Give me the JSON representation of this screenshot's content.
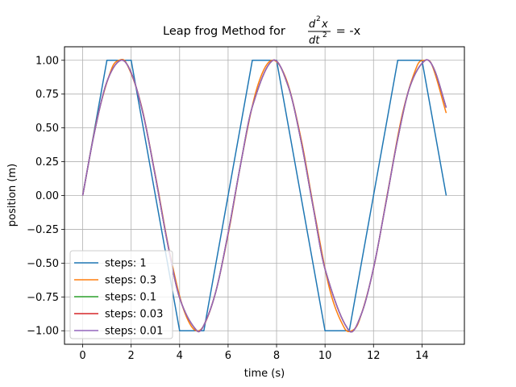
{
  "chart_data": {
    "type": "line",
    "title": {
      "prefix": "Leap frog Method for ",
      "numerator_base": "d",
      "numerator_exp": "2",
      "numerator_var": "x",
      "denominator_base": "dt",
      "denominator_exp": "2",
      "suffix": " = -x"
    },
    "xlabel": "time (s)",
    "ylabel": "position (m)",
    "xlim": [
      -0.75,
      15.75
    ],
    "ylim": [
      -1.1,
      1.1
    ],
    "xticks": [
      0,
      2,
      4,
      6,
      8,
      10,
      12,
      14
    ],
    "yticks": [
      -1.0,
      -0.75,
      -0.5,
      -0.25,
      0.0,
      0.25,
      0.5,
      0.75,
      1.0
    ],
    "xtick_labels": [
      "0",
      "2",
      "4",
      "6",
      "8",
      "10",
      "12",
      "14"
    ],
    "ytick_labels": [
      "−1.00",
      "−0.75",
      "−0.50",
      "−0.25",
      "0.00",
      "0.25",
      "0.50",
      "0.75",
      "1.00"
    ],
    "grid": true,
    "legend_position": "lower-left",
    "colors": [
      "#1f77b4",
      "#ff7f0e",
      "#2ca02c",
      "#d62728",
      "#9467bd"
    ],
    "series": [
      {
        "name": "steps: 1",
        "color": "#1f77b4",
        "x": [
          0,
          1,
          2,
          3,
          4,
          5,
          6,
          7,
          8,
          9,
          10,
          11,
          12,
          13,
          14,
          15
        ],
        "y": [
          0,
          1,
          1,
          0,
          -1,
          -1,
          0,
          1,
          1,
          0,
          -1,
          -1,
          0,
          1,
          1,
          0
        ]
      },
      {
        "name": "steps: 0.3",
        "color": "#ff7f0e",
        "x": [
          0,
          0.6,
          1.2,
          1.5,
          1.8,
          2.4,
          3.0,
          3.6,
          4.2,
          4.8,
          5.4,
          6.0,
          6.6,
          7.2,
          7.8,
          8.4,
          9.0,
          9.6,
          10.2,
          10.8,
          11.1,
          11.4,
          12.0,
          12.6,
          13.2,
          13.8,
          14.1,
          14.4,
          15.0
        ],
        "y": [
          0,
          0.57,
          0.94,
          1.0,
          0.98,
          0.68,
          0.15,
          -0.43,
          -0.86,
          -1.0,
          -0.77,
          -0.29,
          0.31,
          0.8,
          1.0,
          0.86,
          0.43,
          -0.16,
          -0.7,
          -0.98,
          -1.0,
          -0.93,
          -0.54,
          0.04,
          0.61,
          0.96,
          1.0,
          0.97,
          0.61
        ]
      },
      {
        "name": "steps: 0.1",
        "color": "#2ca02c",
        "x": [
          0,
          0.5,
          1.0,
          1.571,
          2.0,
          2.5,
          3.0,
          3.5,
          4.0,
          4.712,
          5.0,
          5.5,
          6.0,
          6.5,
          7.0,
          7.854,
          8.5,
          9.0,
          9.5,
          10.0,
          10.996,
          11.5,
          12.0,
          12.5,
          13.0,
          13.5,
          14.137,
          14.5,
          15.0
        ],
        "y": [
          0,
          0.479,
          0.841,
          1.0,
          0.909,
          0.598,
          0.141,
          -0.351,
          -0.757,
          -1.0,
          -0.959,
          -0.706,
          -0.279,
          0.215,
          0.657,
          1.0,
          0.798,
          0.412,
          -0.075,
          -0.544,
          -1.0,
          -0.876,
          -0.537,
          -0.066,
          0.42,
          0.804,
          1.0,
          0.935,
          0.65
        ]
      },
      {
        "name": "steps: 0.03",
        "color": "#d62728",
        "x": [
          0,
          0.5,
          1.0,
          1.571,
          2.0,
          2.5,
          3.0,
          3.5,
          4.0,
          4.712,
          5.0,
          5.5,
          6.0,
          6.5,
          7.0,
          7.854,
          8.5,
          9.0,
          9.5,
          10.0,
          10.996,
          11.5,
          12.0,
          12.5,
          13.0,
          13.5,
          14.137,
          14.5,
          15.0
        ],
        "y": [
          0,
          0.479,
          0.841,
          1.0,
          0.909,
          0.598,
          0.141,
          -0.351,
          -0.757,
          -1.0,
          -0.959,
          -0.706,
          -0.279,
          0.215,
          0.657,
          1.0,
          0.798,
          0.412,
          -0.075,
          -0.544,
          -1.0,
          -0.876,
          -0.537,
          -0.066,
          0.42,
          0.804,
          1.0,
          0.935,
          0.65
        ]
      },
      {
        "name": "steps: 0.01",
        "color": "#9467bd",
        "x": [
          0,
          0.5,
          1.0,
          1.571,
          2.0,
          2.5,
          3.0,
          3.5,
          4.0,
          4.712,
          5.0,
          5.5,
          6.0,
          6.5,
          7.0,
          7.854,
          8.5,
          9.0,
          9.5,
          10.0,
          10.996,
          11.5,
          12.0,
          12.5,
          13.0,
          13.5,
          14.137,
          14.5,
          15.0
        ],
        "y": [
          0,
          0.479,
          0.841,
          1.0,
          0.909,
          0.598,
          0.141,
          -0.351,
          -0.757,
          -1.0,
          -0.959,
          -0.706,
          -0.279,
          0.215,
          0.657,
          1.0,
          0.798,
          0.412,
          -0.075,
          -0.544,
          -1.0,
          -0.876,
          -0.537,
          -0.066,
          0.42,
          0.804,
          1.0,
          0.935,
          0.65
        ]
      }
    ]
  }
}
